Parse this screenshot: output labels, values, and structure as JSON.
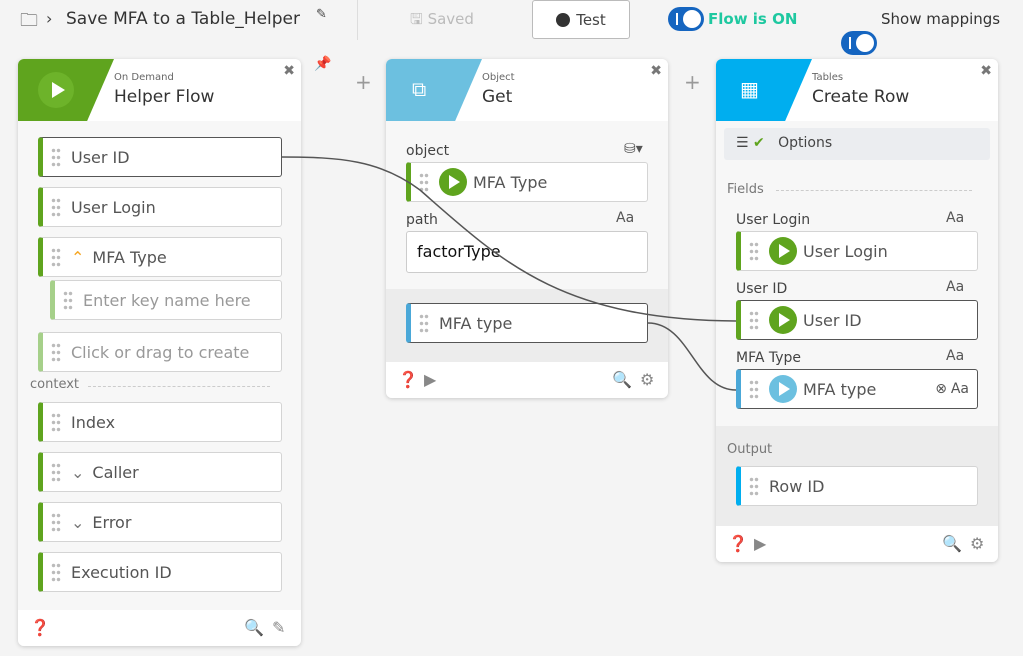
{
  "header": {
    "title": "Save MFA to a Table_Helper",
    "saved_label": "Saved",
    "test_label": "Test",
    "flow_status": "Flow is ON",
    "mappings_label": "Show mappings"
  },
  "colors": {
    "green": "#5fa41e",
    "object_blue": "#6cc0e0",
    "tables_blue": "#00aeef",
    "toggle": "#1565c0",
    "flow_on": "#1ec8a0"
  },
  "card1": {
    "category": "On Demand",
    "title": "Helper Flow",
    "inputs": [
      "User ID",
      "User Login",
      "MFA Type"
    ],
    "key_placeholder": "Enter key name here",
    "create_placeholder": "Click or drag to create",
    "context_label": "context",
    "context": [
      "Index",
      "Caller",
      "Error",
      "Execution ID"
    ]
  },
  "card2": {
    "category": "Object",
    "title": "Get",
    "object_label": "object",
    "object_value": "MFA Type",
    "path_label": "path",
    "path_type": "Aa",
    "path_value": "factorType",
    "output": "MFA type"
  },
  "card3": {
    "category": "Tables",
    "title": "Create Row",
    "options_label": "Options",
    "fields_label": "Fields",
    "fields": [
      {
        "label": "User Login",
        "type": "Aa",
        "value": "User Login"
      },
      {
        "label": "User ID",
        "type": "Aa",
        "value": "User ID"
      },
      {
        "label": "MFA Type",
        "type": "Aa",
        "value": "MFA type",
        "extra": "Aa"
      }
    ],
    "output_label": "Output",
    "output": "Row ID"
  }
}
